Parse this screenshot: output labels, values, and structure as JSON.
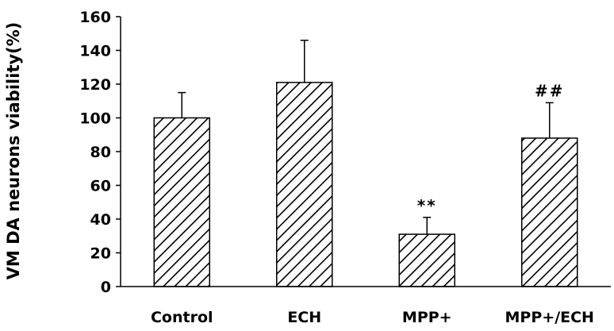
{
  "chart_data": {
    "type": "bar",
    "title": "",
    "xlabel": "",
    "ylabel": "VM DA neurons viability(%)",
    "ylim": [
      0,
      160
    ],
    "yticks": [
      0,
      20,
      40,
      60,
      80,
      100,
      120,
      140,
      160
    ],
    "categories": [
      "Control",
      "ECH",
      "MPP+",
      "MPP+/ECH"
    ],
    "values": [
      100,
      121,
      31,
      88
    ],
    "errors": [
      15,
      25,
      10,
      21
    ],
    "annotations": [
      "",
      "",
      "**",
      "##"
    ],
    "bar_fill": "diagonal-hatch",
    "bar_stroke": "#000000",
    "grid": false,
    "legend": "none"
  }
}
